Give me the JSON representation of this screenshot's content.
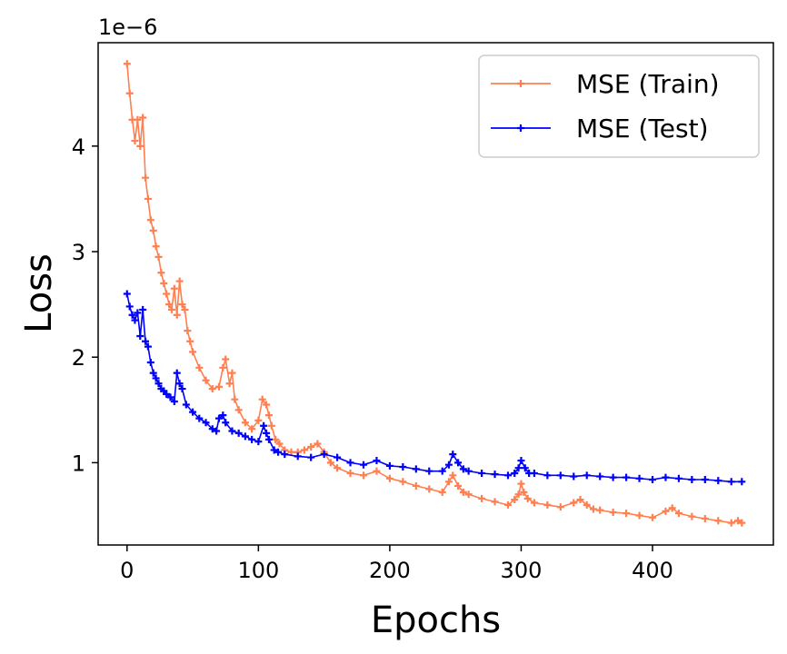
{
  "chart_data": {
    "type": "line",
    "xlabel": "Epochs",
    "ylabel": "Loss",
    "y_offset_label": "1e−6",
    "xlim": [
      -22,
      492
    ],
    "ylim": [
      0.22,
      4.98
    ],
    "x_ticks": [
      0,
      100,
      200,
      300,
      400
    ],
    "x_tick_labels": [
      "0",
      "100",
      "200",
      "300",
      "400"
    ],
    "y_ticks": [
      1,
      2,
      3,
      4
    ],
    "y_tick_labels": [
      "1",
      "2",
      "3",
      "4"
    ],
    "grid": false,
    "legend_position": "top-right",
    "marker": "plus",
    "series": [
      {
        "name": "MSE (Train)",
        "color": "#ff7f50",
        "x": [
          0,
          2,
          4,
          6,
          8,
          10,
          12,
          14,
          16,
          18,
          20,
          22,
          24,
          26,
          28,
          30,
          32,
          34,
          36,
          38,
          40,
          42,
          44,
          46,
          48,
          50,
          55,
          60,
          65,
          70,
          73,
          75,
          78,
          80,
          82,
          85,
          90,
          95,
          100,
          103,
          106,
          108,
          110,
          113,
          116,
          120,
          125,
          130,
          135,
          140,
          145,
          150,
          155,
          160,
          170,
          180,
          190,
          200,
          210,
          220,
          230,
          240,
          245,
          248,
          252,
          256,
          260,
          270,
          280,
          290,
          295,
          298,
          300,
          302,
          305,
          310,
          320,
          330,
          340,
          345,
          350,
          355,
          360,
          370,
          380,
          390,
          400,
          410,
          415,
          420,
          430,
          440,
          450,
          460,
          465,
          468
        ],
        "values": [
          4.78,
          4.5,
          4.25,
          4.05,
          4.25,
          4.0,
          4.27,
          3.7,
          3.5,
          3.3,
          3.2,
          3.05,
          2.95,
          2.8,
          2.7,
          2.6,
          2.5,
          2.45,
          2.65,
          2.4,
          2.72,
          2.5,
          2.45,
          2.25,
          2.15,
          2.05,
          1.9,
          1.78,
          1.7,
          1.72,
          1.9,
          1.98,
          1.75,
          1.85,
          1.6,
          1.5,
          1.38,
          1.32,
          1.4,
          1.6,
          1.55,
          1.45,
          1.35,
          1.22,
          1.18,
          1.12,
          1.1,
          1.1,
          1.12,
          1.15,
          1.18,
          1.1,
          1.0,
          0.95,
          0.9,
          0.88,
          0.92,
          0.85,
          0.82,
          0.78,
          0.75,
          0.72,
          0.82,
          0.88,
          0.78,
          0.72,
          0.7,
          0.66,
          0.63,
          0.6,
          0.65,
          0.7,
          0.8,
          0.72,
          0.66,
          0.62,
          0.6,
          0.58,
          0.62,
          0.65,
          0.6,
          0.56,
          0.55,
          0.53,
          0.52,
          0.5,
          0.48,
          0.54,
          0.57,
          0.52,
          0.49,
          0.47,
          0.45,
          0.43,
          0.45,
          0.43
        ]
      },
      {
        "name": "MSE (Test)",
        "color": "#0000ff",
        "x": [
          0,
          2,
          4,
          6,
          8,
          10,
          12,
          14,
          16,
          18,
          20,
          22,
          24,
          26,
          28,
          30,
          33,
          36,
          38,
          40,
          42,
          45,
          50,
          55,
          60,
          65,
          68,
          70,
          73,
          75,
          80,
          85,
          90,
          95,
          100,
          104,
          106,
          108,
          112,
          115,
          120,
          130,
          140,
          150,
          160,
          170,
          180,
          190,
          200,
          210,
          220,
          230,
          240,
          245,
          248,
          252,
          256,
          260,
          270,
          280,
          290,
          295,
          298,
          300,
          303,
          306,
          310,
          320,
          330,
          340,
          350,
          360,
          370,
          380,
          390,
          400,
          410,
          420,
          430,
          440,
          450,
          460,
          468
        ],
        "values": [
          2.6,
          2.48,
          2.4,
          2.35,
          2.42,
          2.2,
          2.45,
          2.15,
          2.1,
          1.95,
          1.85,
          1.8,
          1.75,
          1.7,
          1.68,
          1.65,
          1.62,
          1.58,
          1.85,
          1.75,
          1.7,
          1.55,
          1.48,
          1.42,
          1.38,
          1.32,
          1.3,
          1.42,
          1.45,
          1.38,
          1.3,
          1.28,
          1.25,
          1.22,
          1.2,
          1.35,
          1.28,
          1.22,
          1.12,
          1.1,
          1.08,
          1.06,
          1.05,
          1.08,
          1.05,
          1.0,
          0.98,
          1.02,
          0.97,
          0.96,
          0.94,
          0.92,
          0.92,
          0.98,
          1.08,
          1.0,
          0.94,
          0.92,
          0.9,
          0.89,
          0.88,
          0.9,
          0.95,
          1.02,
          0.95,
          0.9,
          0.9,
          0.88,
          0.88,
          0.87,
          0.88,
          0.87,
          0.86,
          0.86,
          0.85,
          0.84,
          0.86,
          0.85,
          0.84,
          0.84,
          0.83,
          0.82,
          0.82
        ]
      }
    ]
  }
}
